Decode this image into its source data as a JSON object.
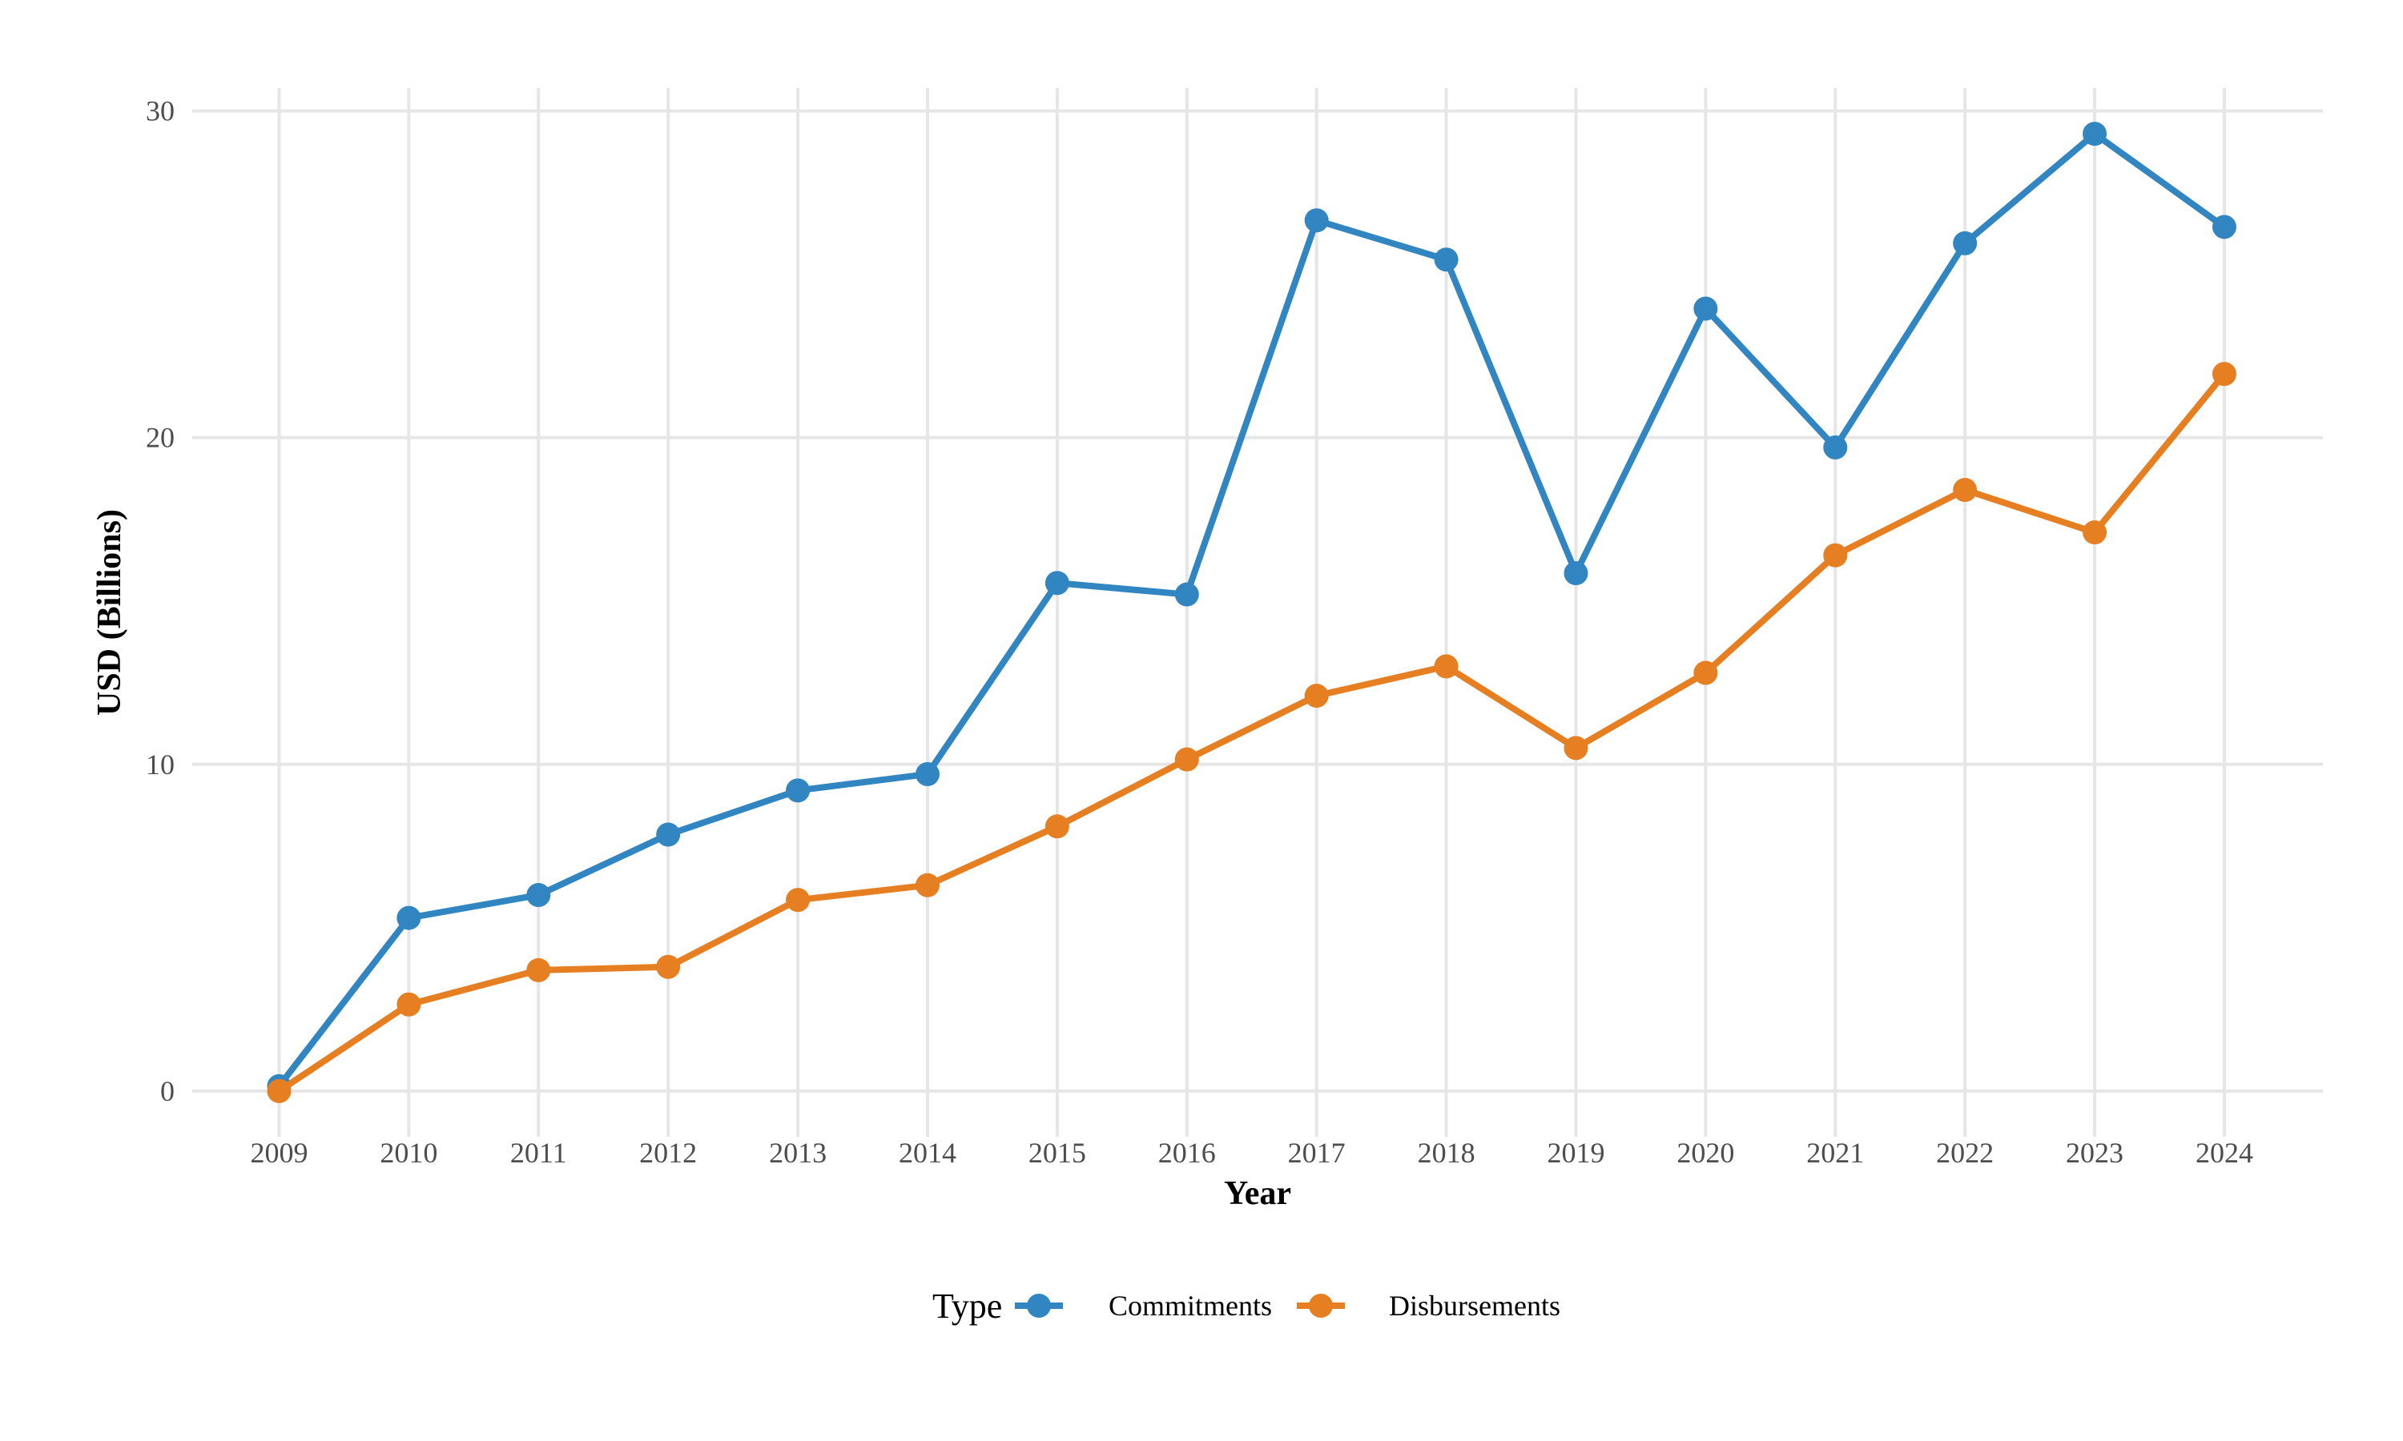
{
  "chart_data": {
    "type": "line",
    "title": "",
    "xlabel": "Year",
    "ylabel": "USD (Billions)",
    "x": [
      2009,
      2010,
      2011,
      2012,
      2013,
      2014,
      2015,
      2016,
      2017,
      2018,
      2019,
      2020,
      2021,
      2022,
      2023,
      2024
    ],
    "x_tick_labels": [
      "2009",
      "2010",
      "2011",
      "2012",
      "2013",
      "2014",
      "2015",
      "2016",
      "2017",
      "2018",
      "2019",
      "2020",
      "2021",
      "2022",
      "2023",
      "2024"
    ],
    "y_ticks": [
      0,
      10,
      20,
      30
    ],
    "y_tick_labels": [
      "0",
      "10",
      "20",
      "30"
    ],
    "ylim": [
      -1.4,
      30.7
    ],
    "grid": true,
    "legend": {
      "title": "Type",
      "position": "bottom"
    },
    "series": [
      {
        "name": "Commitments",
        "color": "#3186c1",
        "values": [
          0.15,
          5.3,
          6.0,
          7.85,
          9.2,
          9.7,
          15.55,
          15.2,
          26.65,
          25.45,
          15.85,
          23.95,
          19.7,
          25.95,
          29.3,
          26.45
        ]
      },
      {
        "name": "Disbursements",
        "color": "#e67e22",
        "values": [
          0.0,
          2.65,
          3.7,
          3.8,
          5.85,
          6.3,
          8.1,
          10.15,
          12.1,
          13.0,
          10.5,
          12.8,
          16.4,
          18.4,
          17.1,
          21.95
        ]
      }
    ]
  }
}
